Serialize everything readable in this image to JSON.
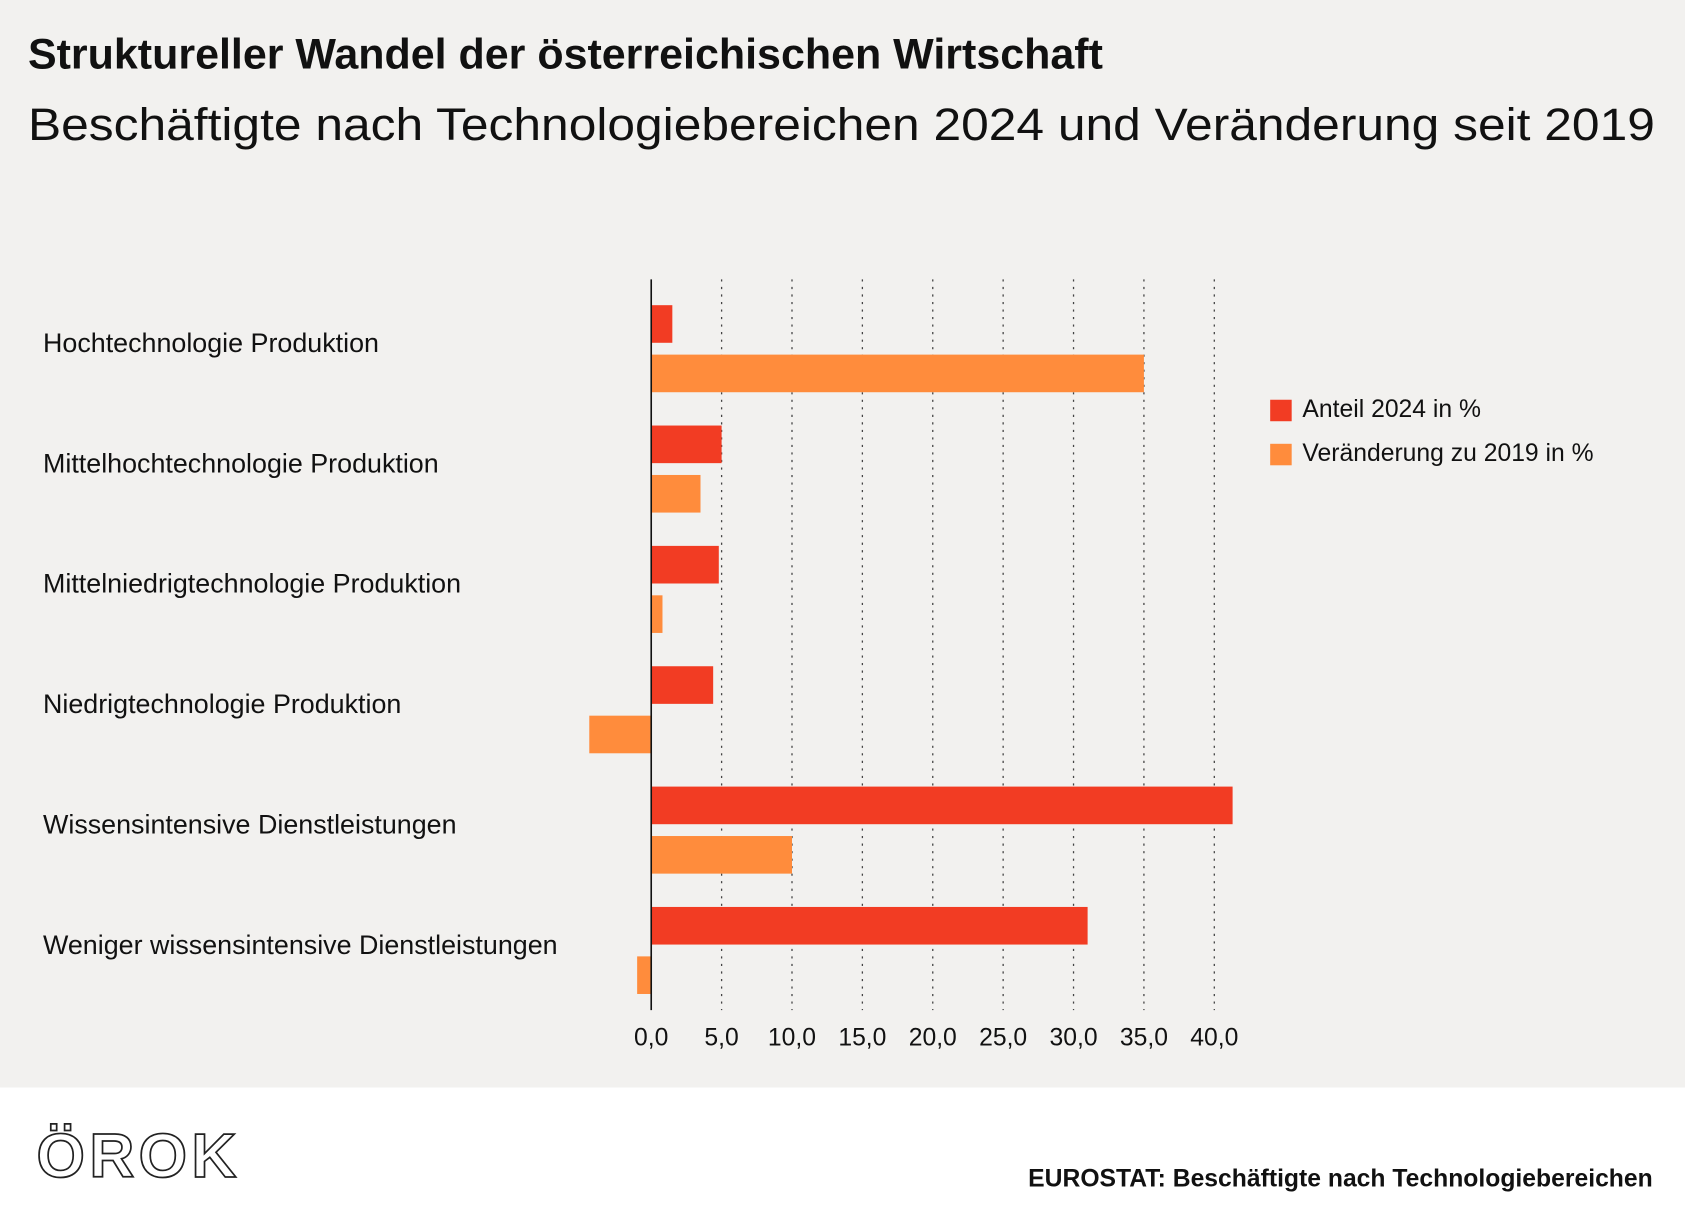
{
  "chart_data": {
    "type": "bar",
    "orientation": "horizontal",
    "title": "Struktureller Wandel der österreichischen Wirtschaft",
    "subtitle": "Beschäftigte nach Technologiebereichen 2024 und Veränderung seit 2019",
    "categories": [
      "Hochtechnologie Produktion",
      "Mittelhochtechnologie Produktion",
      "Mittelniedrigtechnologie Produktion",
      "Niedrigtechnologie Produktion",
      "Wissensintensive Dienstleistungen",
      "Weniger wissensintensive Dienstleistungen"
    ],
    "series": [
      {
        "name": "Anteil 2024 in %",
        "color": "#f23c23",
        "values": [
          1.5,
          5.0,
          4.8,
          4.4,
          41.3,
          31.0
        ]
      },
      {
        "name": "Veränderung zu 2019 in %",
        "color": "#ff8c3c",
        "values": [
          35.0,
          3.5,
          0.8,
          -4.4,
          10.0,
          -1.0
        ]
      }
    ],
    "xlim": [
      -5,
      45
    ],
    "xticks": [
      {
        "value": 0,
        "label": "0,0"
      },
      {
        "value": 5,
        "label": "5,0"
      },
      {
        "value": 10,
        "label": "10,0"
      },
      {
        "value": 15,
        "label": "15,0"
      },
      {
        "value": 20,
        "label": "20,0"
      },
      {
        "value": 25,
        "label": "25,0"
      },
      {
        "value": 30,
        "label": "30,0"
      },
      {
        "value": 35,
        "label": "35,0"
      },
      {
        "value": 40,
        "label": "40,0"
      }
    ],
    "grid": true,
    "legend": "right",
    "logo": "ÖROK",
    "source": "EUROSTAT: Beschäftigte nach Technologiebereichen"
  }
}
